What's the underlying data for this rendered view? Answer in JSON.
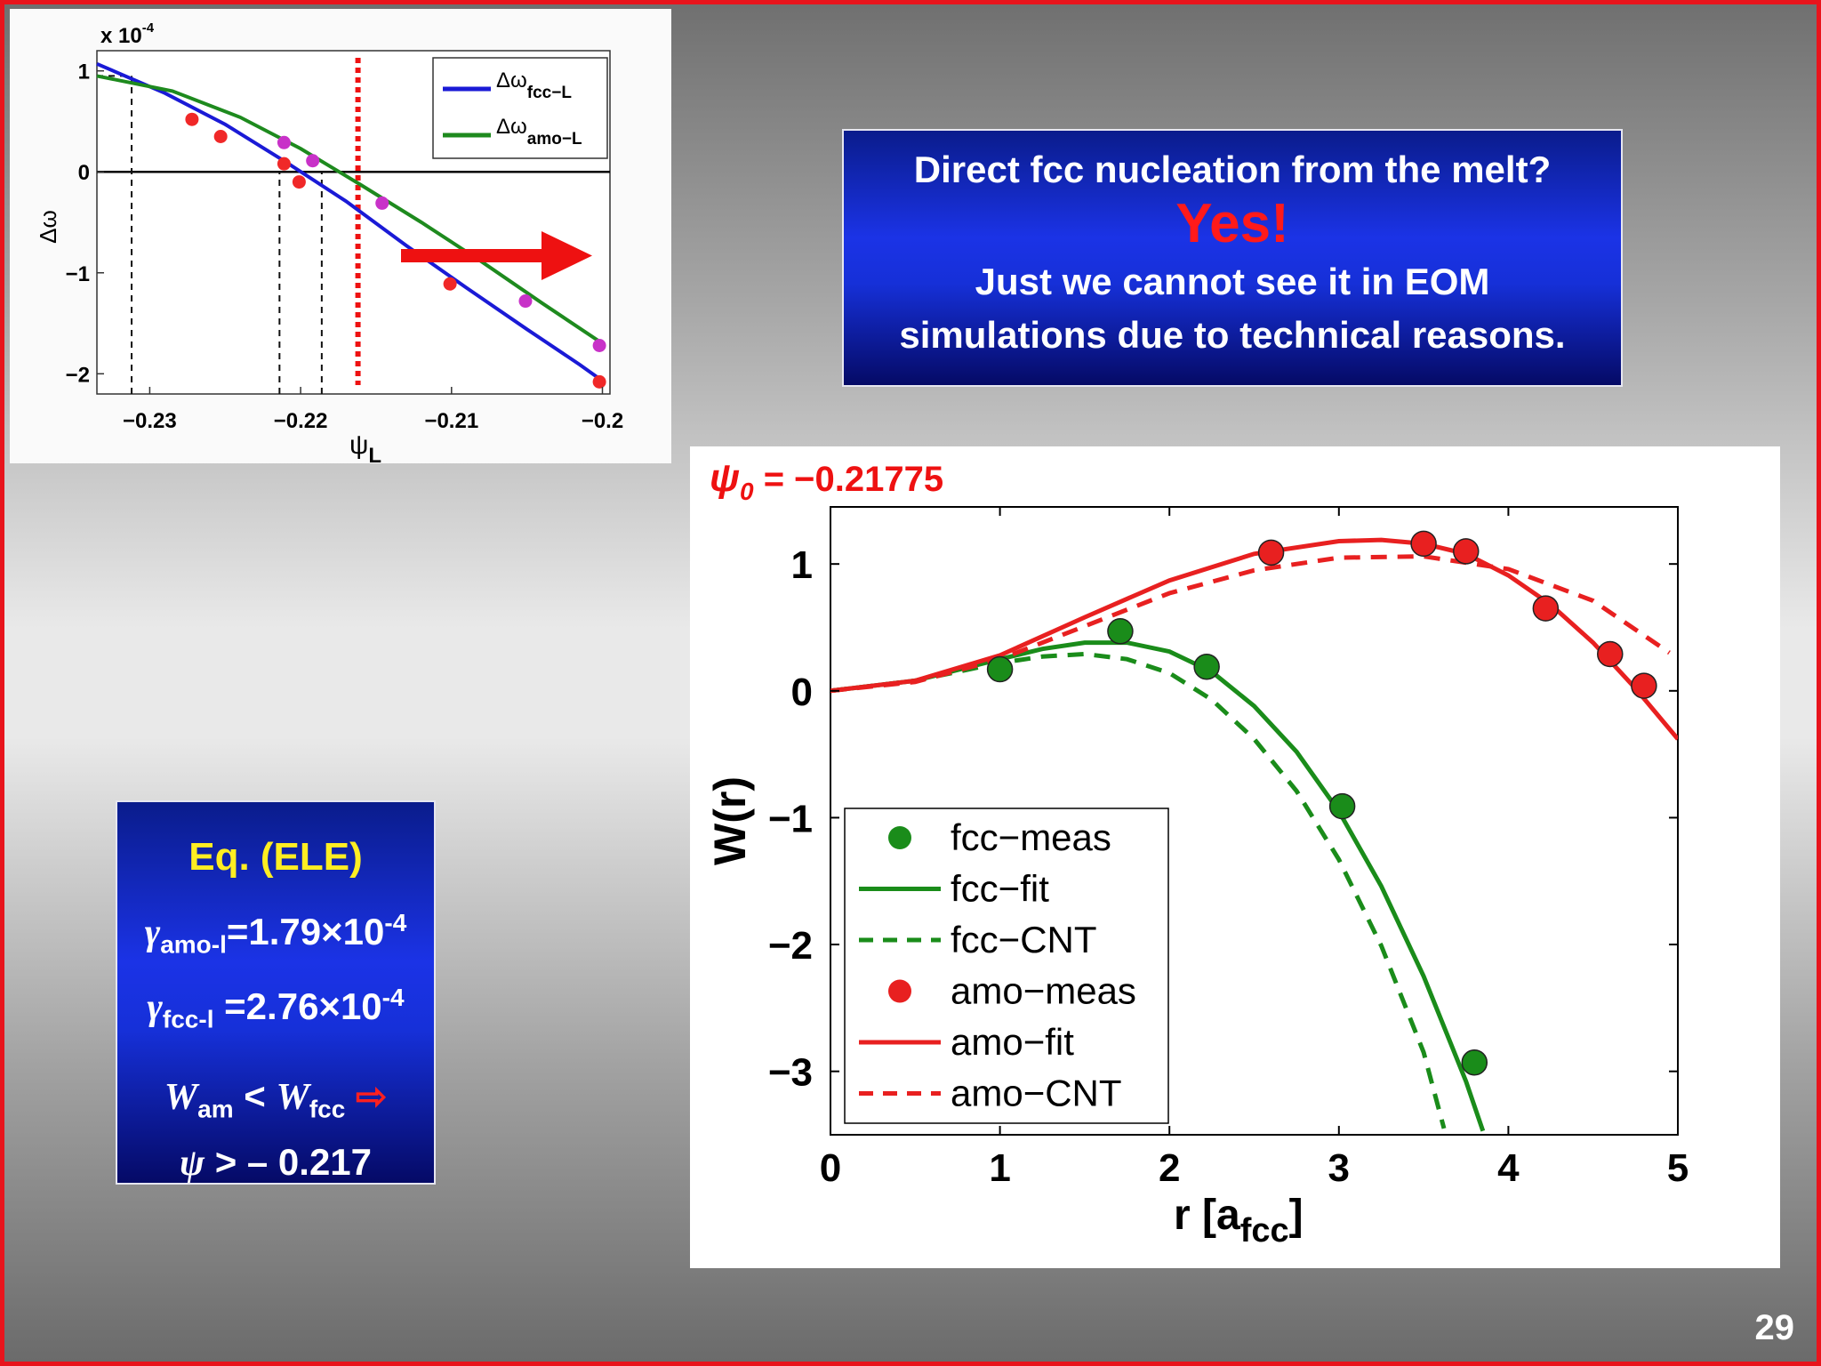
{
  "chart_data": [
    {
      "type": "line",
      "title": "",
      "xlabel": "ψ",
      "xlabel_sub": "L",
      "ylabel": "Δω",
      "y_multiplier_label": "x 10",
      "y_multiplier_exp": "-4",
      "xlim": [
        -0.2335,
        -0.1995
      ],
      "ylim": [
        -2.2,
        1.2
      ],
      "xticks": [
        -0.23,
        -0.22,
        -0.21,
        -0.2
      ],
      "xtick_labels": [
        "−0.23",
        "−0.22",
        "−0.21",
        "−0.2"
      ],
      "yticks": [
        1,
        0,
        -1,
        -2
      ],
      "ytick_labels": [
        "1",
        "0",
        "−1",
        "−2"
      ],
      "legend_position": "top-right",
      "series": [
        {
          "name": "Δω",
          "name_sub": "fcc−L",
          "color": "#1a1ad6",
          "x": [
            -0.2335,
            -0.229,
            -0.225,
            -0.221,
            -0.217,
            -0.213,
            -0.209,
            -0.205,
            -0.2015,
            -0.2
          ],
          "y": [
            1.07,
            0.78,
            0.47,
            0.1,
            -0.29,
            -0.73,
            -1.15,
            -1.56,
            -1.91,
            -2.07
          ]
        },
        {
          "name": "Δω",
          "name_sub": "amo−L",
          "color": "#1e8a1e",
          "x": [
            -0.2335,
            -0.2285,
            -0.224,
            -0.22,
            -0.216,
            -0.212,
            -0.208,
            -0.204,
            -0.2
          ],
          "y": [
            0.95,
            0.8,
            0.54,
            0.23,
            -0.13,
            -0.5,
            -0.89,
            -1.3,
            -1.7
          ]
        }
      ],
      "points_red": {
        "x": [
          -0.2272,
          -0.2253,
          -0.2211,
          -0.2201,
          -0.2101,
          -0.2002
        ],
        "y": [
          0.52,
          0.35,
          0.08,
          -0.1,
          -1.11,
          -2.08
        ]
      },
      "points_magenta": {
        "x": [
          -0.2211,
          -0.2192,
          -0.2146,
          -0.2051,
          -0.2002
        ],
        "y": [
          0.29,
          0.11,
          -0.31,
          -1.28,
          -1.72
        ]
      },
      "vlines_dashed": [
        -0.2312,
        -0.2214,
        -0.2186
      ],
      "hline_dashed_y": 0.95,
      "vline_red_dotted": -0.2162,
      "grid": false,
      "colors": {
        "fcc": "#1a1ad6",
        "amo": "#1e8a1e",
        "points_red": "#f02828",
        "points_magenta": "#c832c8",
        "marker_line": "#ee1111",
        "arrow": "#ee1111"
      }
    },
    {
      "type": "line",
      "title": "",
      "annotation_symbol": "ψ",
      "annotation_sub": "0",
      "annotation_value": " = −0.21775",
      "xlabel": "r [a",
      "xlabel_sub": "fcc",
      "xlabel_end": "]",
      "ylabel": "W(r)",
      "xlim": [
        0,
        5
      ],
      "ylim": [
        -3.5,
        1.45
      ],
      "xticks": [
        0,
        1,
        2,
        3,
        4,
        5
      ],
      "xtick_labels": [
        "0",
        "1",
        "2",
        "3",
        "4",
        "5"
      ],
      "yticks": [
        1,
        0,
        -1,
        -2,
        -3
      ],
      "ytick_labels": [
        "1",
        "0",
        "−1",
        "−2",
        "−3"
      ],
      "legend_position": "bottom-left",
      "grid": false,
      "series": [
        {
          "name": "fcc−meas",
          "style": "markers",
          "color": "#1a8c1a",
          "x": [
            1.0,
            1.71,
            2.22,
            3.02,
            3.8
          ],
          "y": [
            0.17,
            0.47,
            0.19,
            -0.91,
            -2.93
          ]
        },
        {
          "name": "fcc−fit",
          "style": "solid",
          "color": "#1a8c1a",
          "x": [
            0,
            0.5,
            1.0,
            1.25,
            1.5,
            1.75,
            2.0,
            2.25,
            2.5,
            2.75,
            3.0,
            3.25,
            3.5,
            3.75,
            3.85
          ],
          "y": [
            0,
            0.08,
            0.25,
            0.33,
            0.38,
            0.38,
            0.31,
            0.15,
            -0.12,
            -0.48,
            -0.95,
            -1.54,
            -2.25,
            -3.08,
            -3.47
          ]
        },
        {
          "name": "fcc−CNT",
          "style": "dashed",
          "color": "#1a8c1a",
          "x": [
            0,
            0.5,
            1.0,
            1.25,
            1.5,
            1.75,
            2.0,
            2.25,
            2.5,
            2.75,
            3.0,
            3.25,
            3.5,
            3.62
          ],
          "y": [
            0,
            0.08,
            0.22,
            0.27,
            0.29,
            0.25,
            0.14,
            -0.07,
            -0.38,
            -0.79,
            -1.33,
            -2.01,
            -2.85,
            -3.45
          ]
        },
        {
          "name": "amo−meas",
          "style": "markers",
          "color": "#e82020",
          "x": [
            2.6,
            3.5,
            3.75,
            4.22,
            4.6,
            4.8
          ],
          "y": [
            1.09,
            1.16,
            1.1,
            0.65,
            0.29,
            0.04
          ]
        },
        {
          "name": "amo−fit",
          "style": "solid",
          "color": "#e82020",
          "x": [
            0,
            0.5,
            1.0,
            1.5,
            2.0,
            2.5,
            3.0,
            3.25,
            3.5,
            3.75,
            4.0,
            4.25,
            4.5,
            4.75,
            5.0
          ],
          "y": [
            0,
            0.08,
            0.28,
            0.58,
            0.87,
            1.08,
            1.18,
            1.19,
            1.16,
            1.08,
            0.91,
            0.68,
            0.38,
            0.02,
            -0.38
          ]
        },
        {
          "name": "amo−CNT",
          "style": "dashed",
          "color": "#e82020",
          "x": [
            0,
            0.5,
            1.0,
            1.5,
            2.0,
            2.5,
            3.0,
            3.5,
            4.0,
            4.5,
            4.95
          ],
          "y": [
            0,
            0.07,
            0.25,
            0.51,
            0.77,
            0.95,
            1.05,
            1.06,
            0.96,
            0.71,
            0.3
          ]
        }
      ]
    }
  ],
  "question_box": {
    "line1": "Direct fcc nucleation from the melt?",
    "answer": "Yes!",
    "line3": "Just we cannot see it in EOM",
    "line4": "simulations due to technical reasons."
  },
  "eq_box": {
    "title": "Eq. (ELE)",
    "gamma": "γ",
    "gamma_amo_sub": "amo-l",
    "gamma_amo_value": "=1.79×10",
    "gamma_amo_exp": "-4",
    "gamma_fcc_sub": "fcc-l",
    "gamma_fcc_value": " =2.76×10",
    "gamma_fcc_exp": "-4",
    "w": "W",
    "w_am_sub": "am",
    "lt": " < ",
    "w_fcc_sub": "fcc",
    "implies_symbol": "⇨",
    "psi": "ψ",
    "psi_condition": " > – 0.217"
  },
  "slide_number": "29"
}
